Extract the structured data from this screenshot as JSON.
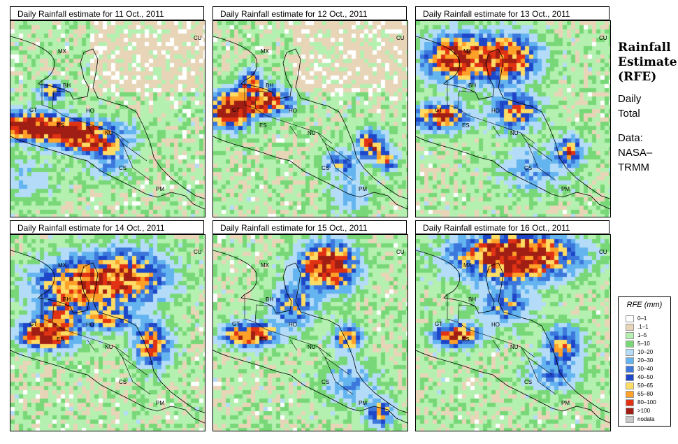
{
  "panels": [
    {
      "title": "Daily Rainfall estimate for  11 Oct., 2011",
      "seed": 11,
      "blobs": [
        [
          0.08,
          0.52,
          0.16,
          0.06,
          95
        ],
        [
          0.28,
          0.55,
          0.22,
          0.05,
          120
        ],
        [
          0.4,
          0.62,
          0.14,
          0.04,
          80
        ],
        [
          0.2,
          0.35,
          0.06,
          0.04,
          60
        ],
        [
          0.5,
          0.7,
          0.1,
          0.08,
          30
        ],
        [
          0.05,
          0.8,
          0.15,
          0.1,
          15
        ]
      ]
    },
    {
      "title": "Daily Rainfall estimate for  12 Oct., 2011",
      "seed": 12,
      "blobs": [
        [
          0.08,
          0.45,
          0.1,
          0.08,
          110
        ],
        [
          0.25,
          0.4,
          0.12,
          0.06,
          100
        ],
        [
          0.18,
          0.3,
          0.05,
          0.05,
          70
        ],
        [
          0.8,
          0.62,
          0.06,
          0.06,
          90
        ],
        [
          0.88,
          0.7,
          0.05,
          0.05,
          60
        ],
        [
          0.65,
          0.72,
          0.08,
          0.06,
          40
        ],
        [
          0.7,
          0.88,
          0.1,
          0.08,
          20
        ]
      ]
    },
    {
      "title": "Daily Rainfall estimate for  13 Oct., 2011",
      "seed": 13,
      "blobs": [
        [
          0.2,
          0.18,
          0.14,
          0.1,
          110
        ],
        [
          0.45,
          0.18,
          0.14,
          0.1,
          100
        ],
        [
          0.12,
          0.48,
          0.12,
          0.06,
          90
        ],
        [
          0.5,
          0.45,
          0.1,
          0.08,
          70
        ],
        [
          0.78,
          0.65,
          0.06,
          0.06,
          70
        ],
        [
          0.6,
          0.75,
          0.15,
          0.1,
          25
        ]
      ]
    },
    {
      "title": "Daily Rainfall estimate for  14 Oct., 2011",
      "seed": 14,
      "blobs": [
        [
          0.18,
          0.5,
          0.12,
          0.06,
          130
        ],
        [
          0.35,
          0.25,
          0.2,
          0.12,
          80
        ],
        [
          0.6,
          0.2,
          0.18,
          0.12,
          70
        ],
        [
          0.72,
          0.55,
          0.08,
          0.1,
          80
        ],
        [
          0.5,
          0.42,
          0.1,
          0.05,
          60
        ],
        [
          0.25,
          0.4,
          0.1,
          0.08,
          50
        ]
      ]
    },
    {
      "title": "Daily Rainfall estimate for  15 Oct., 2011",
      "seed": 15,
      "blobs": [
        [
          0.58,
          0.15,
          0.12,
          0.1,
          130
        ],
        [
          0.18,
          0.5,
          0.12,
          0.05,
          110
        ],
        [
          0.4,
          0.35,
          0.1,
          0.1,
          50
        ],
        [
          0.68,
          0.52,
          0.06,
          0.06,
          70
        ],
        [
          0.85,
          0.9,
          0.06,
          0.06,
          60
        ],
        [
          0.7,
          0.75,
          0.12,
          0.1,
          25
        ]
      ]
    },
    {
      "title": "Daily Rainfall estimate for  16 Oct., 2011",
      "seed": 16,
      "blobs": [
        [
          0.5,
          0.1,
          0.25,
          0.1,
          140
        ],
        [
          0.2,
          0.5,
          0.1,
          0.05,
          100
        ],
        [
          0.45,
          0.35,
          0.12,
          0.08,
          45
        ],
        [
          0.75,
          0.55,
          0.08,
          0.08,
          60
        ],
        [
          0.7,
          0.7,
          0.12,
          0.08,
          30
        ]
      ]
    }
  ],
  "map_labels": [
    "MX",
    "BH",
    "GT",
    "HO",
    "ES",
    "NU",
    "CS",
    "PM",
    "CU"
  ],
  "side": {
    "title_lines": [
      "Rainfall",
      "Estimate",
      "(RFE)"
    ],
    "daily_lines": [
      "Daily",
      "Total"
    ],
    "data_lines": [
      "Data:",
      "NASA–",
      "TRMM"
    ]
  },
  "legend": {
    "title": "RFE (mm)",
    "items": [
      {
        "label": "0–1",
        "color": "#ffffff"
      },
      {
        "label": ".1–1",
        "color": "#e8d5b8"
      },
      {
        "label": "1–5",
        "color": "#b4f0b0"
      },
      {
        "label": "5–10",
        "color": "#78d878"
      },
      {
        "label": "10–20",
        "color": "#b4dcf8"
      },
      {
        "label": "20–30",
        "color": "#64b4f0"
      },
      {
        "label": "30–40",
        "color": "#3c78dc"
      },
      {
        "label": "40–50",
        "color": "#1e46c8"
      },
      {
        "label": "50–65",
        "color": "#ffdc64"
      },
      {
        "label": "65–80",
        "color": "#ffa028"
      },
      {
        "label": "80–100",
        "color": "#e13214"
      },
      {
        "label": ">100",
        "color": "#a01e14"
      },
      {
        "label": "nodata",
        "color": "#c8c8c8"
      }
    ]
  }
}
